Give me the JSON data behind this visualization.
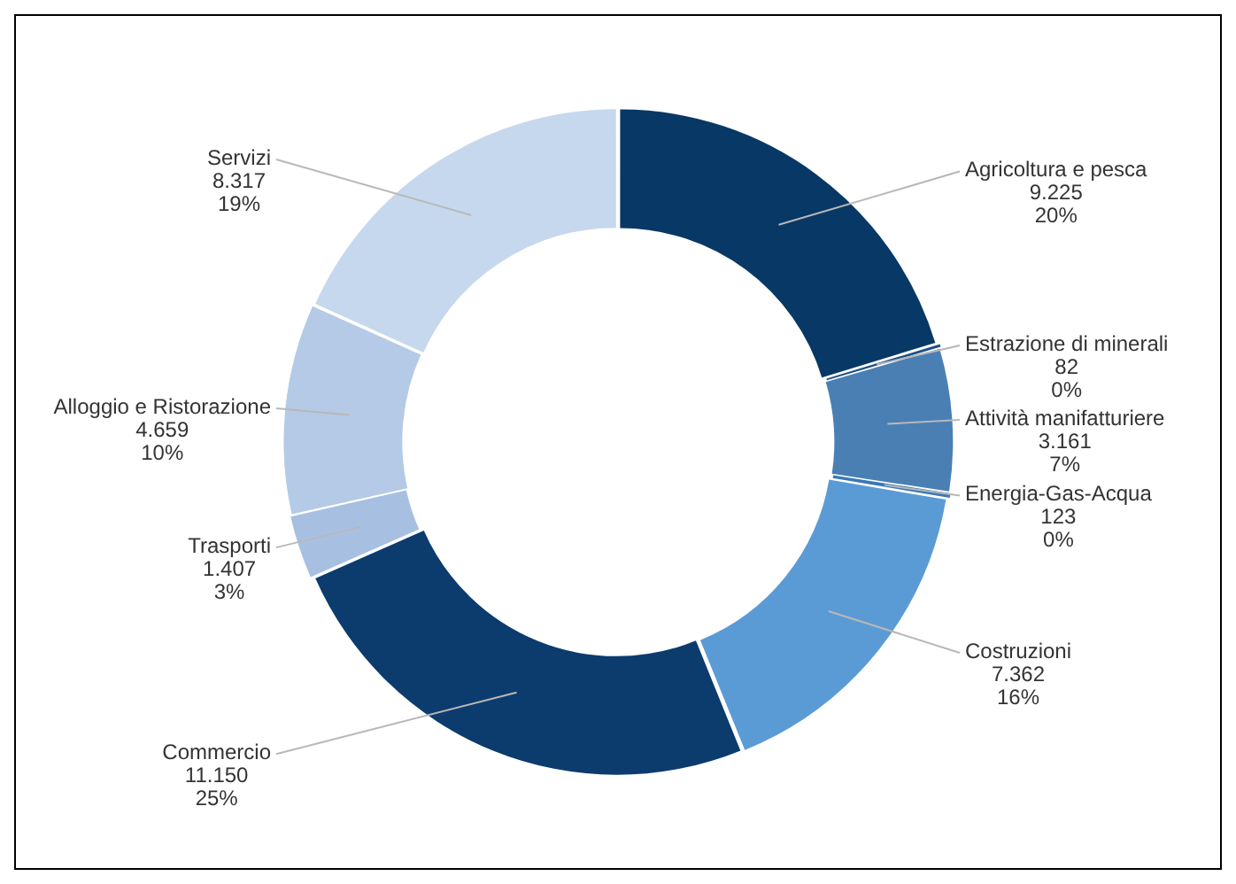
{
  "chart_data": {
    "type": "donut",
    "categories": [
      "Agricoltura e pesca",
      "Estrazione di minerali",
      "Attività manifatturiere",
      "Energia-Gas-Acqua",
      "Costruzioni",
      "Commercio",
      "Trasporti",
      "Alloggio e Ristorazione",
      "Servizi"
    ],
    "values": [
      9225,
      82,
      3161,
      123,
      7362,
      11150,
      1407,
      4659,
      8317
    ],
    "value_labels": [
      "9.225\n20%",
      "82\n0%",
      "3.161\n7%",
      "123\n0%",
      "7.362\n16%",
      "11.150\n25%",
      "1.407\n3%",
      "4.659\n10%",
      "8.317\n19%"
    ],
    "colors": [
      "#073866",
      "#1d5086",
      "#4a7fb4",
      "#3a78b8",
      "#5b9bd5",
      "#0c3b6e",
      "#a7c0e2",
      "#b5cae6",
      "#c6d8ee"
    ],
    "legend": false
  }
}
